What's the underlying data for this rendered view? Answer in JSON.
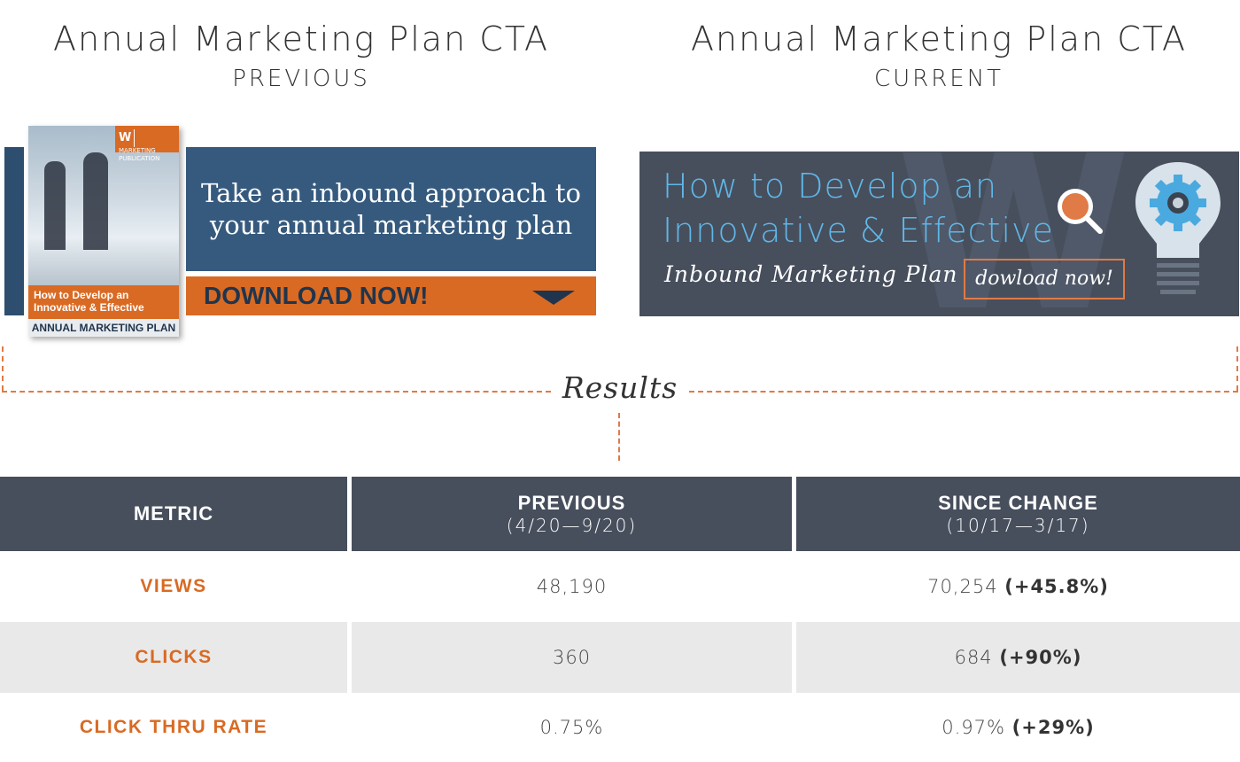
{
  "previous": {
    "title": "Annual Marketing Plan CTA",
    "subtitle": "PREVIOUS",
    "cta": {
      "headline": "Take an inbound approach to your annual marketing plan",
      "button": "DOWNLOAD NOW!",
      "book": {
        "badge_logo": "W",
        "badge_text": "MARKETING PUBLICATION",
        "cover_title": "How to Develop an Innovative & Effective",
        "cover_footer": "ANNUAL MARKETING PLAN"
      }
    }
  },
  "current": {
    "title": "Annual Marketing Plan CTA",
    "subtitle": "CURRENT",
    "cta": {
      "headline_line1": "How to Develop an",
      "headline_line2": "Innovative & Effective",
      "subheadline": "Inbound Marketing Plan",
      "button": "dowload now!",
      "watermark": "W",
      "icons": [
        "magnifier-icon",
        "lightbulb-gear-icon"
      ]
    }
  },
  "results_label": "Results",
  "colors": {
    "orange": "#d96a23",
    "navy": "#365a7e",
    "slate": "#474f5d",
    "light_blue": "#5fb7e8"
  },
  "table": {
    "headers": {
      "metric": "METRIC",
      "previous": "PREVIOUS",
      "previous_dates": "(4/20—9/20)",
      "since_change": "SINCE CHANGE",
      "since_change_dates": "(10/17—3/17)"
    },
    "rows": [
      {
        "metric": "VIEWS",
        "previous": "48,190",
        "current": "70,254",
        "change": "(+45.8%)"
      },
      {
        "metric": "CLICKS",
        "previous": "360",
        "current": "684",
        "change": "(+90%)"
      },
      {
        "metric": "CLICK THRU RATE",
        "previous": "0.75%",
        "current": "0.97%",
        "change": "(+29%)"
      }
    ]
  }
}
